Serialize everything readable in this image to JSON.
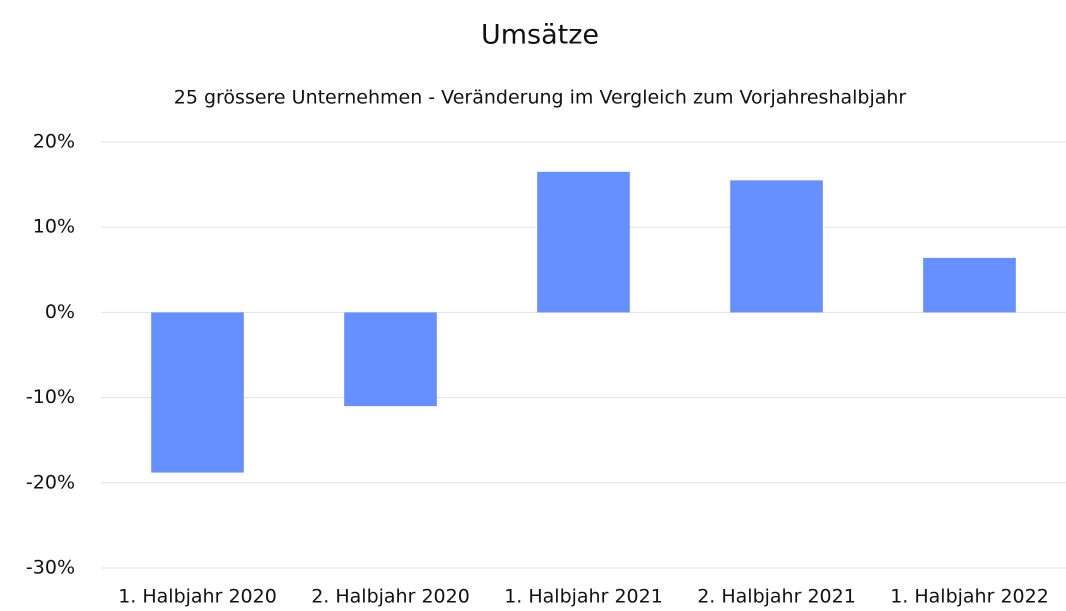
{
  "chart_data": {
    "type": "bar",
    "title": "Umsätze",
    "subtitle": "25 grössere Unternehmen - Veränderung im Vergleich zum Vorjahreshalbjahr",
    "categories": [
      "1. Halbjahr 2020",
      "2. Halbjahr 2020",
      "1. Halbjahr 2021",
      "2. Halbjahr 2021",
      "1. Halbjahr 2022"
    ],
    "values": [
      -18.8,
      -11.0,
      16.5,
      15.5,
      6.4
    ],
    "color": "#6690ff",
    "ylim": [
      -30,
      20
    ],
    "yticks": [
      {
        "value": -30,
        "label": "-30%"
      },
      {
        "value": -20,
        "label": "-20%"
      },
      {
        "value": -10,
        "label": "-10%"
      },
      {
        "value": 0,
        "label": "0%"
      },
      {
        "value": 10,
        "label": "10%"
      },
      {
        "value": 20,
        "label": "20%"
      }
    ],
    "grid": true
  }
}
